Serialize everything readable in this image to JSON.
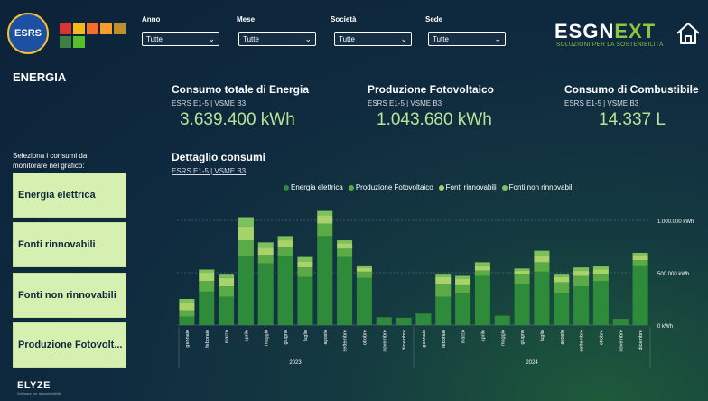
{
  "header": {
    "badge_text": "ESRS",
    "sdg_icons": [
      "sdg-6",
      "sdg-7",
      "sdg-9",
      "sdg-11",
      "sdg-12",
      "sdg-13",
      "sdg-15"
    ],
    "filters": [
      {
        "label": "Anno",
        "value": "Tutte"
      },
      {
        "label": "Mese",
        "value": "Tutte"
      },
      {
        "label": "Società",
        "value": "Tutte"
      },
      {
        "label": "Sede",
        "value": "Tutte"
      }
    ],
    "logo_a": "ESGN",
    "logo_b": "EXT",
    "logo_sub": "SOLUZIONI PER LA SOSTENIBILITÀ",
    "home_icon": "home-icon"
  },
  "page_title": "ENERGIA",
  "kpis": [
    {
      "title": "Consumo totale di Energia",
      "link": "ESRS E1-5 | VSME B3",
      "value": "3.639.400 kWh"
    },
    {
      "title": "Produzione Fotovoltaico",
      "link": "ESRS E1-5 | VSME B3",
      "value": "1.043.680 kWh"
    },
    {
      "title": "Consumo di Combustibile",
      "link": "ESRS E1-5 | VSME B3",
      "value": "14.337 L"
    }
  ],
  "sidebar": {
    "label": "Seleziona i consumi da monitorare nel grafico:",
    "buttons": [
      "Energia elettrica",
      "Fonti rinnovabili",
      "Fonti non rinnovabili",
      "Produzione Fotovolt..."
    ]
  },
  "detail": {
    "title": "Dettaglio consumi",
    "link": "ESRS E1-5 | VSME B3"
  },
  "colors": {
    "s1": "#2e8b3a",
    "s2": "#5aaa45",
    "s3": "#a8d26a",
    "s4": "#7cc25a"
  },
  "chart_data": {
    "type": "bar",
    "stacked": true,
    "title": "Dettaglio consumi",
    "legend": [
      "Energia elettrica",
      "Produzione Fotovoltaico",
      "Fonti rinnovabili",
      "Fonti non rinnovabili"
    ],
    "ylim": [
      0,
      1100000
    ],
    "yticks": [
      0,
      500000,
      1000000
    ],
    "ytick_labels": [
      "0 kWh",
      "500.000 kWh",
      "1.000.000 kWh"
    ],
    "years": [
      "2023",
      "2024"
    ],
    "categories": [
      "gennaio",
      "febbraio",
      "marzo",
      "aprile",
      "maggio",
      "giugno",
      "luglio",
      "agosto",
      "settembre",
      "ottobre",
      "novembre",
      "dicembre",
      "gennaio",
      "febbraio",
      "marzo",
      "aprile",
      "maggio",
      "giugno",
      "luglio",
      "agosto",
      "settembre",
      "ottobre",
      "novembre",
      "dicembre"
    ],
    "series": [
      {
        "name": "Energia elettrica",
        "values": [
          80000,
          320000,
          270000,
          660000,
          590000,
          660000,
          460000,
          850000,
          650000,
          450000,
          75000,
          70000,
          110000,
          270000,
          310000,
          470000,
          90000,
          390000,
          510000,
          310000,
          370000,
          420000,
          60000,
          570000
        ]
      },
      {
        "name": "Produzione Fotovoltaico",
        "values": [
          60000,
          100000,
          100000,
          150000,
          80000,
          80000,
          90000,
          120000,
          80000,
          60000,
          0,
          0,
          0,
          120000,
          70000,
          50000,
          0,
          100000,
          90000,
          100000,
          100000,
          70000,
          0,
          50000
        ]
      },
      {
        "name": "Fonti rinnovabili",
        "values": [
          70000,
          80000,
          80000,
          130000,
          70000,
          70000,
          60000,
          80000,
          50000,
          40000,
          0,
          0,
          0,
          70000,
          60000,
          50000,
          0,
          30000,
          70000,
          50000,
          50000,
          40000,
          0,
          50000
        ]
      },
      {
        "name": "Fonti non rinnovabili",
        "values": [
          40000,
          30000,
          40000,
          90000,
          50000,
          40000,
          40000,
          40000,
          30000,
          20000,
          0,
          0,
          0,
          30000,
          30000,
          30000,
          0,
          20000,
          40000,
          30000,
          30000,
          30000,
          0,
          20000
        ]
      }
    ]
  },
  "footer": {
    "logo": "ELYZE",
    "sub": "Software per la sostenibilità"
  }
}
